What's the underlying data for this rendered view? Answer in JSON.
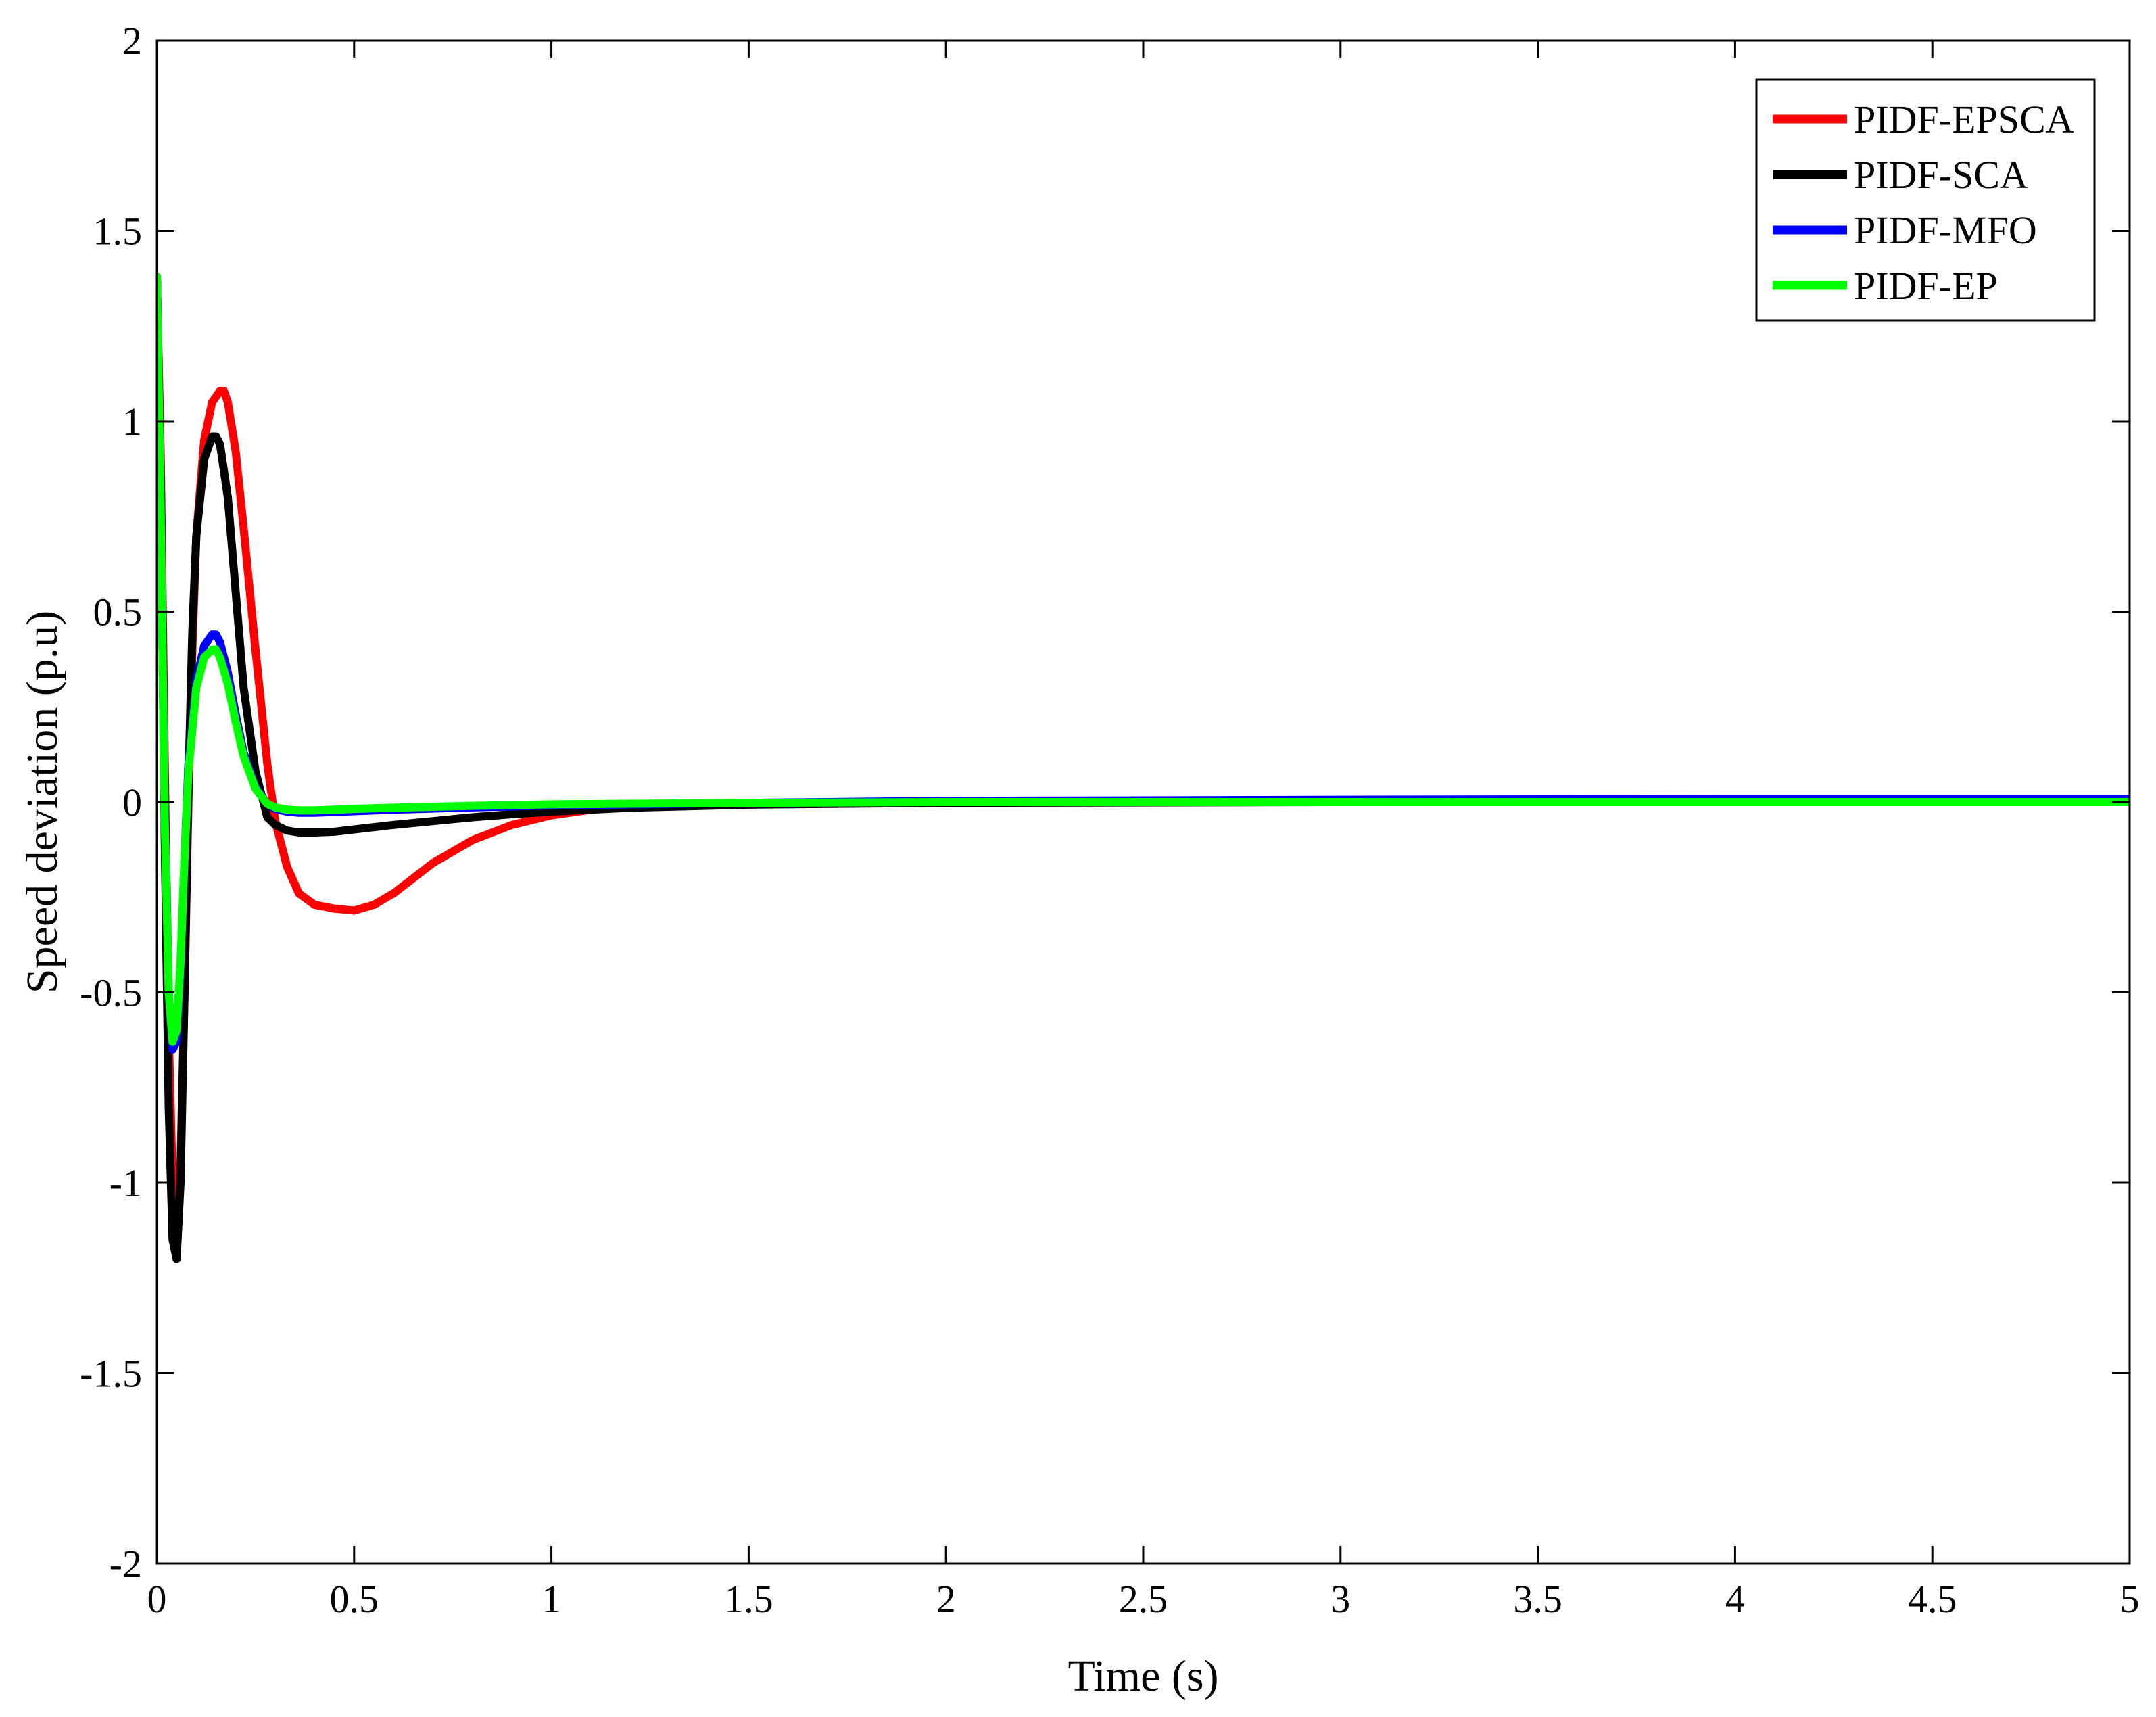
{
  "chart_data": {
    "type": "line",
    "xlabel": "Time (s)",
    "ylabel": "Speed deviation (p.u)",
    "xlim": [
      0,
      5
    ],
    "ylim": [
      -2,
      2
    ],
    "xticks": [
      0,
      0.5,
      1,
      1.5,
      2,
      2.5,
      3,
      3.5,
      4,
      4.5,
      5
    ],
    "xtick_labels": [
      "0",
      "0.5",
      "1",
      "1.5",
      "2",
      "2.5",
      "3",
      "3.5",
      "4",
      "4.5",
      "5"
    ],
    "yticks": [
      -2,
      -1.5,
      -1,
      -0.5,
      0,
      0.5,
      1,
      1.5,
      2
    ],
    "ytick_labels": [
      "-2",
      "-1.5",
      "-1",
      "-0.5",
      "0",
      "0.5",
      "1",
      "1.5",
      "2"
    ],
    "grid": false,
    "legend_position": "top-right",
    "series": [
      {
        "name": "PIDF-EPSCA",
        "color": "#ff0000",
        "x": [
          0,
          0.01,
          0.02,
          0.03,
          0.04,
          0.05,
          0.06,
          0.07,
          0.08,
          0.09,
          0.1,
          0.12,
          0.14,
          0.16,
          0.17,
          0.18,
          0.2,
          0.22,
          0.25,
          0.28,
          0.3,
          0.33,
          0.36,
          0.4,
          0.45,
          0.5,
          0.55,
          0.6,
          0.7,
          0.8,
          0.9,
          1.0,
          1.1,
          1.2,
          1.5,
          2.0,
          3.0,
          4.0,
          5.0
        ],
        "y": [
          1.38,
          0.9,
          0.1,
          -0.6,
          -1.0,
          -1.12,
          -0.95,
          -0.5,
          0.0,
          0.4,
          0.7,
          0.95,
          1.05,
          1.08,
          1.08,
          1.05,
          0.92,
          0.72,
          0.4,
          0.1,
          -0.05,
          -0.17,
          -0.24,
          -0.27,
          -0.28,
          -0.285,
          -0.27,
          -0.24,
          -0.16,
          -0.1,
          -0.06,
          -0.035,
          -0.02,
          -0.012,
          -0.005,
          0.0,
          0.0,
          0.0,
          0.0
        ]
      },
      {
        "name": "PIDF-SCA",
        "color": "#000000",
        "x": [
          0,
          0.01,
          0.02,
          0.03,
          0.04,
          0.05,
          0.06,
          0.07,
          0.08,
          0.09,
          0.1,
          0.12,
          0.14,
          0.15,
          0.16,
          0.18,
          0.2,
          0.22,
          0.25,
          0.28,
          0.3,
          0.33,
          0.36,
          0.4,
          0.45,
          0.5,
          0.6,
          0.7,
          0.8,
          0.9,
          1.0,
          1.2,
          1.5,
          2.0,
          3.0,
          4.0,
          5.0
        ],
        "y": [
          1.38,
          0.8,
          -0.1,
          -0.8,
          -1.15,
          -1.2,
          -1.0,
          -0.5,
          0.05,
          0.45,
          0.7,
          0.9,
          0.96,
          0.96,
          0.94,
          0.8,
          0.55,
          0.3,
          0.08,
          -0.04,
          -0.06,
          -0.075,
          -0.08,
          -0.08,
          -0.078,
          -0.072,
          -0.06,
          -0.05,
          -0.04,
          -0.032,
          -0.025,
          -0.015,
          -0.007,
          -0.002,
          0.0,
          0.0,
          0.0
        ]
      },
      {
        "name": "PIDF-MFO",
        "color": "#0000ff",
        "x": [
          0,
          0.01,
          0.02,
          0.03,
          0.04,
          0.05,
          0.06,
          0.07,
          0.08,
          0.1,
          0.12,
          0.14,
          0.15,
          0.16,
          0.18,
          0.2,
          0.22,
          0.25,
          0.28,
          0.3,
          0.33,
          0.36,
          0.4,
          0.45,
          0.5,
          0.6,
          0.8,
          1.0,
          1.5,
          2.0,
          3.0,
          4.0,
          5.0
        ],
        "y": [
          1.38,
          0.8,
          0.0,
          -0.5,
          -0.65,
          -0.63,
          -0.45,
          -0.15,
          0.1,
          0.32,
          0.41,
          0.44,
          0.44,
          0.42,
          0.34,
          0.23,
          0.13,
          0.04,
          -0.005,
          -0.018,
          -0.025,
          -0.028,
          -0.028,
          -0.026,
          -0.024,
          -0.02,
          -0.014,
          -0.009,
          -0.002,
          0.003,
          0.006,
          0.008,
          0.008
        ]
      },
      {
        "name": "PIDF-EP",
        "color": "#00ff00",
        "x": [
          0,
          0.01,
          0.02,
          0.03,
          0.04,
          0.05,
          0.06,
          0.07,
          0.08,
          0.1,
          0.12,
          0.14,
          0.15,
          0.16,
          0.18,
          0.2,
          0.22,
          0.25,
          0.28,
          0.3,
          0.33,
          0.36,
          0.4,
          0.45,
          0.5,
          0.6,
          0.8,
          1.0,
          1.5,
          2.0,
          3.0,
          4.0,
          5.0
        ],
        "y": [
          1.38,
          0.75,
          -0.05,
          -0.5,
          -0.63,
          -0.6,
          -0.42,
          -0.15,
          0.08,
          0.3,
          0.38,
          0.4,
          0.4,
          0.38,
          0.31,
          0.21,
          0.12,
          0.035,
          -0.005,
          -0.014,
          -0.02,
          -0.022,
          -0.022,
          -0.02,
          -0.018,
          -0.015,
          -0.01,
          -0.006,
          -0.002,
          0.0,
          0.0,
          0.0,
          0.0
        ]
      }
    ]
  }
}
